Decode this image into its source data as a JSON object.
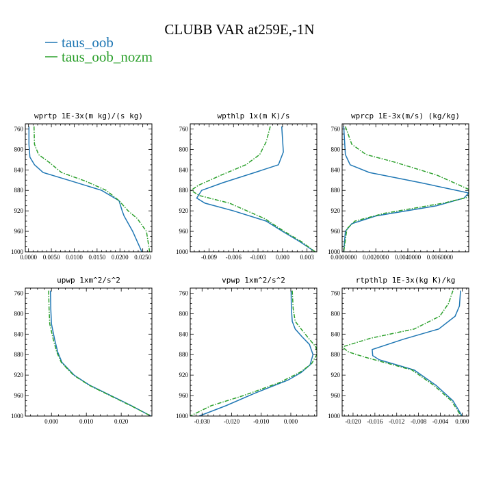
{
  "figure": {
    "title": "CLUBB VAR at259E,-1N",
    "legend": [
      {
        "label": "taus_oob",
        "color": "#1f77b4",
        "dash": "solid"
      },
      {
        "label": "taus_oob_nozm",
        "color": "#2ca02c",
        "dash": "dashdot"
      }
    ]
  },
  "chart_data": [
    {
      "type": "line",
      "title": "wprtp  1E-3x(m kg)/(s kg)",
      "xlim": [
        -0.0007,
        0.027
      ],
      "ylim": [
        1000,
        750
      ],
      "xticks": [
        0.0,
        0.005,
        0.01,
        0.015,
        0.02,
        0.025
      ],
      "xticklabels": [
        "0.0000",
        "0.0050",
        "0.0100",
        "0.0150",
        "0.0200",
        "0.0250"
      ],
      "yticks": [
        760,
        800,
        840,
        880,
        920,
        960,
        1000
      ],
      "series": [
        {
          "name": "taus_oob",
          "x": [
            0.0001,
            0.0001,
            0.0003,
            0.0013,
            0.0032,
            0.0095,
            0.016,
            0.0198,
            0.0205,
            0.0209,
            0.0228,
            0.0248
          ],
          "y": [
            755,
            790,
            815,
            830,
            845,
            862,
            880,
            900,
            920,
            930,
            960,
            1000
          ]
        },
        {
          "name": "taus_oob_nozm",
          "x": [
            0.0012,
            0.0013,
            0.0022,
            0.0045,
            0.0072,
            0.0125,
            0.017,
            0.0198,
            0.0218,
            0.0238,
            0.0258,
            0.0265
          ],
          "y": [
            755,
            790,
            810,
            825,
            845,
            862,
            880,
            900,
            920,
            935,
            960,
            1000
          ]
        }
      ]
    },
    {
      "type": "line",
      "title": "wpthlp  1x(m K)/s",
      "xlim": [
        -0.0113,
        0.0042
      ],
      "ylim": [
        1000,
        750
      ],
      "xticks": [
        -0.009,
        -0.006,
        -0.003,
        0.0,
        0.003
      ],
      "xticklabels": [
        "-0.009",
        "-0.006",
        "-0.003",
        "0.000",
        "0.003"
      ],
      "yticks": [
        760,
        800,
        840,
        880,
        920,
        960,
        1000
      ],
      "series": [
        {
          "name": "taus_oob",
          "x": [
            -0.0001,
            0.0,
            0.0001,
            -0.0005,
            -0.0034,
            -0.0073,
            -0.0099,
            -0.0105,
            -0.0095,
            -0.006,
            -0.002,
            0.0,
            0.0021,
            0.004
          ],
          "y": [
            755,
            780,
            805,
            830,
            845,
            865,
            880,
            895,
            905,
            920,
            940,
            960,
            980,
            1000
          ]
        },
        {
          "name": "taus_oob_nozm",
          "x": [
            -0.0015,
            -0.002,
            -0.0028,
            -0.0045,
            -0.0075,
            -0.0103,
            -0.0112,
            -0.0102,
            -0.0065,
            -0.0022,
            0.0002,
            0.0023,
            0.004
          ],
          "y": [
            755,
            785,
            810,
            830,
            850,
            870,
            880,
            890,
            905,
            935,
            960,
            980,
            1000
          ]
        }
      ]
    },
    {
      "type": "line",
      "title": "wprcp  1E-3x(m/s) (kg/kg)",
      "xlim": [
        -0.0001,
        0.0078
      ],
      "ylim": [
        1000,
        750
      ],
      "xticks": [
        0.0,
        0.002,
        0.004,
        0.006
      ],
      "xticklabels": [
        "0.0000000",
        "0.0020000",
        "0.0040000",
        "0.0060000"
      ],
      "yticks": [
        760,
        800,
        840,
        880,
        920,
        960,
        1000
      ],
      "series": [
        {
          "name": "taus_oob",
          "x": [
            0.0,
            0.0001,
            0.0004,
            0.0016,
            0.0048,
            0.0078,
            0.0075,
            0.0058,
            0.002,
            0.0005,
            0.0001,
            0.0
          ],
          "y": [
            755,
            810,
            830,
            845,
            865,
            885,
            895,
            910,
            930,
            945,
            960,
            1000
          ]
        },
        {
          "name": "taus_oob_nozm",
          "x": [
            0.0001,
            0.0005,
            0.0014,
            0.0032,
            0.0058,
            0.0078,
            0.0078,
            0.0062,
            0.0025,
            0.0007,
            0.0002,
            0.0
          ],
          "y": [
            755,
            790,
            810,
            825,
            850,
            878,
            893,
            905,
            925,
            940,
            955,
            1000
          ]
        }
      ]
    },
    {
      "type": "line",
      "title": "upwp  1xm^2/s^2",
      "xlim": [
        -0.0075,
        0.0288
      ],
      "ylim": [
        1000,
        750
      ],
      "xticks": [
        0.0,
        0.01,
        0.02
      ],
      "xticklabels": [
        "0.000",
        "0.010",
        "0.020"
      ],
      "yticks": [
        760,
        800,
        840,
        880,
        920,
        960,
        1000
      ],
      "series": [
        {
          "name": "taus_oob",
          "x": [
            -0.0003,
            -0.0002,
            0.0,
            0.0009,
            0.0018,
            0.003,
            0.0065,
            0.011,
            0.017,
            0.023,
            0.0285
          ],
          "y": [
            755,
            790,
            820,
            850,
            875,
            895,
            920,
            940,
            960,
            980,
            1000
          ]
        },
        {
          "name": "taus_oob_nozm",
          "x": [
            -0.0008,
            -0.0007,
            -0.0005,
            0.0005,
            0.0015,
            0.0028,
            0.0063,
            0.0108,
            0.0168,
            0.0228,
            0.0285
          ],
          "y": [
            755,
            790,
            820,
            850,
            875,
            895,
            920,
            940,
            960,
            980,
            1000
          ]
        }
      ]
    },
    {
      "type": "line",
      "title": "vpwp  1xm^2/s^2",
      "xlim": [
        -0.034,
        0.0088
      ],
      "ylim": [
        1000,
        750
      ],
      "xticks": [
        -0.03,
        -0.02,
        -0.01,
        0.0
      ],
      "xticklabels": [
        "-0.030",
        "-0.020",
        "-0.010",
        "0.000"
      ],
      "yticks": [
        760,
        800,
        840,
        880,
        920,
        960,
        1000
      ],
      "series": [
        {
          "name": "taus_oob",
          "x": [
            0.0001,
            0.0002,
            0.0005,
            0.0015,
            0.0038,
            0.0063,
            0.0075,
            0.0065,
            0.0035,
            -0.001,
            -0.012,
            -0.022,
            -0.031
          ],
          "y": [
            755,
            790,
            815,
            830,
            845,
            860,
            880,
            900,
            915,
            930,
            955,
            980,
            1000
          ]
        },
        {
          "name": "taus_oob_nozm",
          "x": [
            0.0005,
            0.0008,
            0.0015,
            0.0035,
            0.006,
            0.0085,
            0.0088,
            0.007,
            0.003,
            -0.004,
            -0.016,
            -0.027,
            -0.034
          ],
          "y": [
            755,
            790,
            815,
            830,
            848,
            865,
            880,
            898,
            915,
            935,
            960,
            980,
            1000
          ]
        }
      ]
    },
    {
      "type": "line",
      "title": "rtpthlp  1E-3x(kg K)/kg",
      "xlim": [
        -0.022,
        0.0012
      ],
      "ylim": [
        1000,
        750
      ],
      "xticks": [
        -0.02,
        -0.016,
        -0.012,
        -0.008,
        -0.004,
        0.0
      ],
      "xticklabels": [
        "-0.020",
        "-0.016",
        "-0.012",
        "-0.008",
        "-0.004",
        "0.000"
      ],
      "yticks": [
        760,
        800,
        840,
        880,
        920,
        960,
        1000
      ],
      "series": [
        {
          "name": "taus_oob",
          "x": [
            -0.0003,
            -0.0005,
            -0.0013,
            -0.0043,
            -0.0108,
            -0.0165,
            -0.0164,
            -0.0152,
            -0.0088,
            -0.0048,
            -0.0017,
            0.0
          ],
          "y": [
            755,
            785,
            805,
            830,
            850,
            870,
            882,
            890,
            910,
            940,
            970,
            1000
          ]
        },
        {
          "name": "taus_oob_nozm",
          "x": [
            -0.0017,
            -0.0025,
            -0.0041,
            -0.0088,
            -0.0168,
            -0.022,
            -0.0208,
            -0.0178,
            -0.0092,
            -0.0052,
            -0.002,
            -0.0002
          ],
          "y": [
            755,
            780,
            805,
            830,
            848,
            865,
            875,
            885,
            910,
            940,
            970,
            1000
          ]
        }
      ]
    }
  ]
}
